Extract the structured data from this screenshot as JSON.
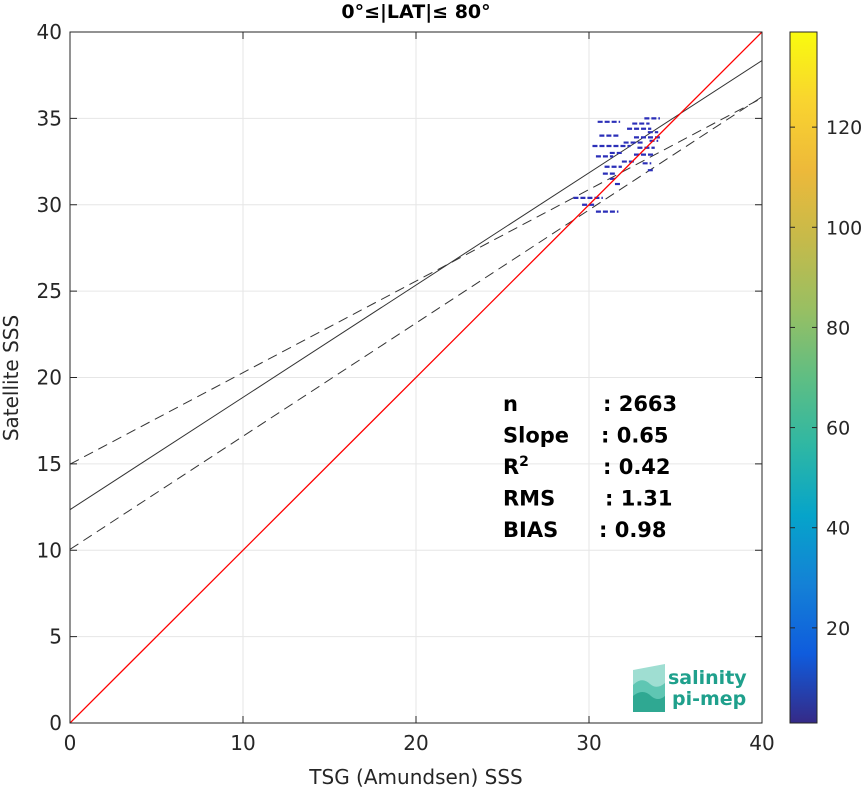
{
  "chart_data": {
    "type": "scatter",
    "title": "0°≤|LAT|≤ 80°",
    "xlabel": "TSG (Amundsen) SSS",
    "ylabel": "Satellite SSS",
    "xlim": [
      0,
      40
    ],
    "ylim": [
      0,
      40
    ],
    "xticks": [
      "0",
      "10",
      "20",
      "30",
      "40"
    ],
    "yticks": [
      "0",
      "5",
      "10",
      "15",
      "20",
      "25",
      "30",
      "35",
      "40"
    ],
    "grid": true,
    "lines": {
      "identity": {
        "color": "#ff0000",
        "from": [
          0,
          0
        ],
        "to": [
          40,
          40
        ]
      },
      "fit": {
        "color": "#333333",
        "intercept": 12.35,
        "slope": 0.65
      },
      "fit_upper": {
        "color": "#333333",
        "dash": true,
        "intercept": 14.98,
        "slope": 0.53
      },
      "fit_lower": {
        "color": "#333333",
        "dash": true,
        "intercept": 10.05,
        "slope": 0.655
      }
    },
    "points": [
      {
        "x": 30.5,
        "x2": 31.8,
        "y": 34.8
      },
      {
        "x": 32.5,
        "x2": 33.5,
        "y": 34.7
      },
      {
        "x": 33.2,
        "x2": 34.1,
        "y": 35.0
      },
      {
        "x": 32.2,
        "x2": 33.6,
        "y": 34.4
      },
      {
        "x": 33.4,
        "x2": 34.0,
        "y": 34.2
      },
      {
        "x": 30.6,
        "x2": 31.8,
        "y": 34.0
      },
      {
        "x": 32.6,
        "x2": 34.1,
        "y": 33.9
      },
      {
        "x": 32.0,
        "x2": 33.2,
        "y": 33.6
      },
      {
        "x": 33.5,
        "x2": 34.0,
        "y": 33.7
      },
      {
        "x": 30.2,
        "x2": 32.4,
        "y": 33.4
      },
      {
        "x": 32.8,
        "x2": 33.8,
        "y": 33.3
      },
      {
        "x": 31.2,
        "x2": 31.9,
        "y": 33.0
      },
      {
        "x": 32.6,
        "x2": 33.7,
        "y": 32.9
      },
      {
        "x": 30.4,
        "x2": 31.4,
        "y": 32.8
      },
      {
        "x": 31.9,
        "x2": 32.6,
        "y": 32.5
      },
      {
        "x": 33.1,
        "x2": 33.6,
        "y": 32.4
      },
      {
        "x": 30.9,
        "x2": 31.9,
        "y": 32.2
      },
      {
        "x": 33.4,
        "x2": 33.8,
        "y": 32.0
      },
      {
        "x": 30.8,
        "x2": 31.6,
        "y": 31.8
      },
      {
        "x": 31.2,
        "x2": 31.6,
        "y": 31.5
      },
      {
        "x": 31.5,
        "x2": 31.9,
        "y": 31.2
      },
      {
        "x": 29.1,
        "x2": 30.8,
        "y": 30.4
      },
      {
        "x": 29.6,
        "x2": 30.4,
        "y": 30.0
      },
      {
        "x": 30.4,
        "x2": 31.7,
        "y": 29.6
      }
    ],
    "colorbar": {
      "min": 1,
      "max": 139,
      "ticks": [
        "20",
        "40",
        "60",
        "80",
        "100",
        "120"
      ],
      "tick_values": [
        20,
        40,
        60,
        80,
        100,
        120
      ],
      "colormap": "parula"
    },
    "stats": [
      {
        "label": "n",
        "value": ": 2663"
      },
      {
        "label": "Slope",
        "value": ": 0.65"
      },
      {
        "label": "R",
        "sup": "2",
        "value": ": 0.42"
      },
      {
        "label": "RMS",
        "value": ": 1.31"
      },
      {
        "label": "BIAS",
        "value": ": 0.98"
      }
    ],
    "logo": {
      "line1": "salinity",
      "line2": "pi-mep",
      "color": "#1fa08c"
    }
  }
}
